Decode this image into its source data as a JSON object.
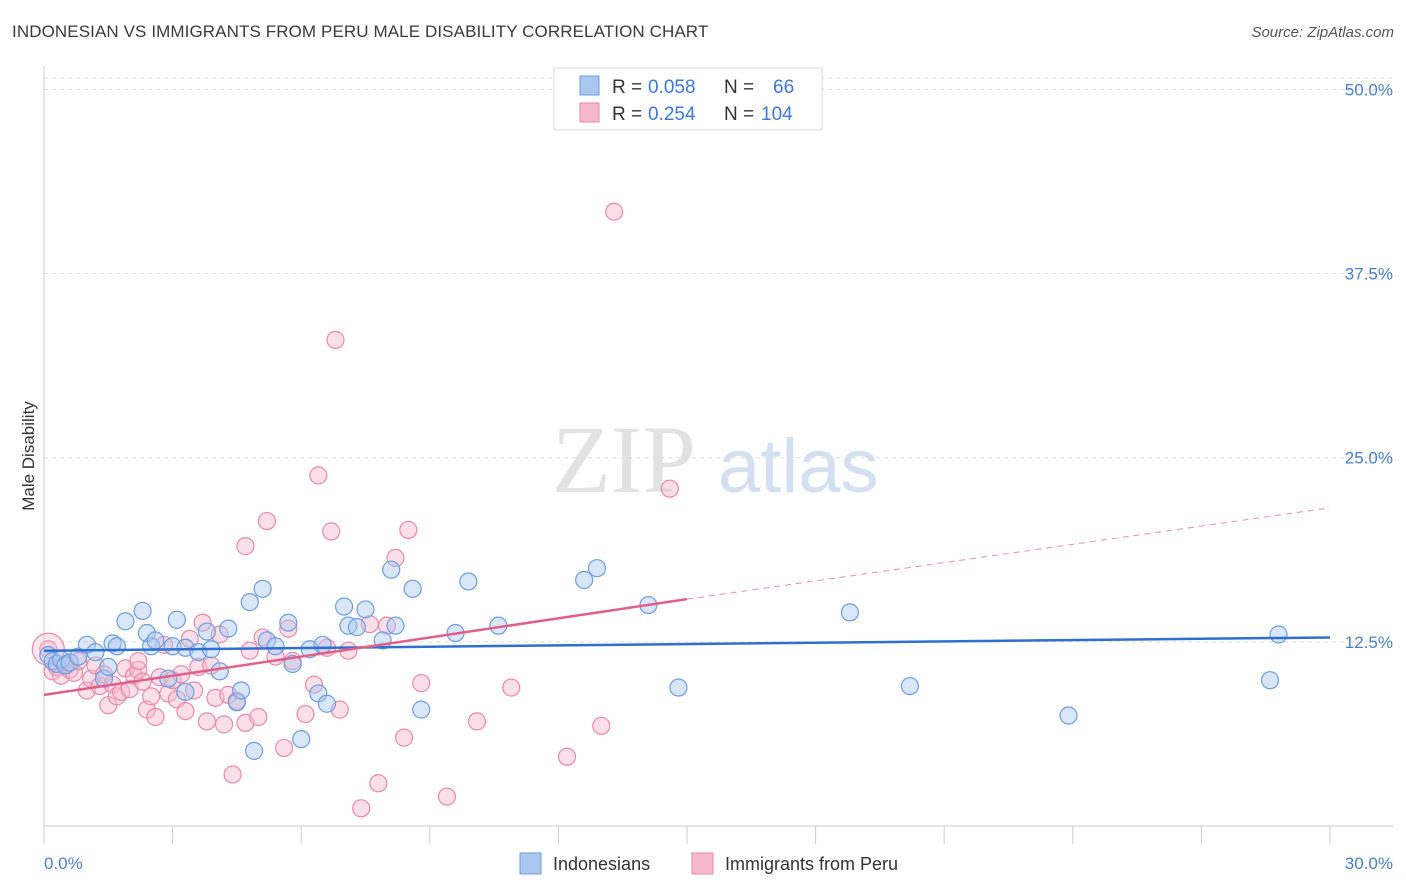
{
  "title": "INDONESIAN VS IMMIGRANTS FROM PERU MALE DISABILITY CORRELATION CHART",
  "source": "Source: ZipAtlas.com",
  "watermark": {
    "zip": "ZIP",
    "atlas": "atlas"
  },
  "colors": {
    "blue_fill": "#a8c8f0",
    "blue_stroke": "#6d9de0",
    "blue_line": "#2f6fd0",
    "pink_fill": "#f6b8cc",
    "pink_stroke": "#e98aa9",
    "pink_line": "#e0608a",
    "axis_label": "#4a7fc9"
  },
  "chart_data": {
    "type": "scatter",
    "title": "INDONESIAN VS IMMIGRANTS FROM PERU MALE DISABILITY CORRELATION CHART",
    "xlabel": "",
    "ylabel": "Male Disability",
    "xlim": [
      0,
      30
    ],
    "ylim": [
      0,
      52
    ],
    "x_tick_labels": [
      "0.0%",
      "30.0%"
    ],
    "y_ticks": [
      12.5,
      25.0,
      37.5,
      50.0
    ],
    "y_tick_labels": [
      "12.5%",
      "25.0%",
      "37.5%",
      "50.0%"
    ],
    "legend": {
      "items": [
        {
          "r_label": "R =",
          "r_value": "0.058",
          "n_label": "N =",
          "n_value": "66"
        },
        {
          "r_label": "R =",
          "r_value": "0.254",
          "n_label": "N =",
          "n_value": "104"
        }
      ]
    },
    "series": [
      {
        "name": "Indonesians",
        "trend": {
          "x": [
            0,
            30
          ],
          "y": [
            11.9,
            12.8
          ]
        },
        "points": [
          [
            0.1,
            11.6
          ],
          [
            0.2,
            11.2
          ],
          [
            0.3,
            11.0
          ],
          [
            0.4,
            11.3
          ],
          [
            0.5,
            10.9
          ],
          [
            0.6,
            11.1
          ],
          [
            0.8,
            11.5
          ],
          [
            1.0,
            12.3
          ],
          [
            1.2,
            11.8
          ],
          [
            1.4,
            10.0
          ],
          [
            1.5,
            10.8
          ],
          [
            1.6,
            12.4
          ],
          [
            1.7,
            12.2
          ],
          [
            1.9,
            13.9
          ],
          [
            2.3,
            14.6
          ],
          [
            2.4,
            13.1
          ],
          [
            2.5,
            12.2
          ],
          [
            2.6,
            12.6
          ],
          [
            2.9,
            10.0
          ],
          [
            3.0,
            12.2
          ],
          [
            3.1,
            14.0
          ],
          [
            3.3,
            12.1
          ],
          [
            3.3,
            9.1
          ],
          [
            3.6,
            11.8
          ],
          [
            3.8,
            13.2
          ],
          [
            3.9,
            12.0
          ],
          [
            4.1,
            10.5
          ],
          [
            4.3,
            13.4
          ],
          [
            4.5,
            8.4
          ],
          [
            4.6,
            9.2
          ],
          [
            4.8,
            15.2
          ],
          [
            4.9,
            5.1
          ],
          [
            5.1,
            16.1
          ],
          [
            5.2,
            12.6
          ],
          [
            5.4,
            12.2
          ],
          [
            5.7,
            13.8
          ],
          [
            5.8,
            11.0
          ],
          [
            6.0,
            5.9
          ],
          [
            6.2,
            12.0
          ],
          [
            6.4,
            9.0
          ],
          [
            6.5,
            12.3
          ],
          [
            6.6,
            8.3
          ],
          [
            7.0,
            14.9
          ],
          [
            7.1,
            13.6
          ],
          [
            7.3,
            13.5
          ],
          [
            7.5,
            14.7
          ],
          [
            7.9,
            12.6
          ],
          [
            8.1,
            17.4
          ],
          [
            8.2,
            13.6
          ],
          [
            8.6,
            16.1
          ],
          [
            8.8,
            7.9
          ],
          [
            9.6,
            13.1
          ],
          [
            9.9,
            16.6
          ],
          [
            10.6,
            13.6
          ],
          [
            12.6,
            16.7
          ],
          [
            12.9,
            17.5
          ],
          [
            14.1,
            15.0
          ],
          [
            14.8,
            9.4
          ],
          [
            18.8,
            14.5
          ],
          [
            20.2,
            9.5
          ],
          [
            23.9,
            7.5
          ],
          [
            28.6,
            9.9
          ],
          [
            28.8,
            13.0
          ]
        ]
      },
      {
        "name": "Immigrants from Peru",
        "trend": {
          "x": [
            0,
            15
          ],
          "y": [
            8.9,
            15.4
          ]
        },
        "trend_extended": {
          "x": [
            15,
            30
          ],
          "y": [
            15.4,
            21.6
          ]
        },
        "points": [
          [
            0.1,
            12.0
          ],
          [
            0.2,
            10.5
          ],
          [
            0.3,
            10.8
          ],
          [
            0.4,
            10.2
          ],
          [
            0.5,
            11.0
          ],
          [
            0.6,
            10.6
          ],
          [
            0.7,
            10.4
          ],
          [
            0.8,
            11.2
          ],
          [
            1.0,
            9.2
          ],
          [
            1.1,
            10.0
          ],
          [
            1.2,
            10.9
          ],
          [
            1.3,
            9.5
          ],
          [
            1.4,
            10.3
          ],
          [
            1.5,
            8.2
          ],
          [
            1.6,
            9.6
          ],
          [
            1.7,
            8.8
          ],
          [
            1.8,
            9.1
          ],
          [
            1.9,
            10.7
          ],
          [
            2.0,
            9.3
          ],
          [
            2.1,
            10.2
          ],
          [
            2.2,
            10.6
          ],
          [
            2.3,
            9.8
          ],
          [
            2.4,
            7.9
          ],
          [
            2.5,
            8.8
          ],
          [
            2.6,
            7.4
          ],
          [
            2.7,
            10.1
          ],
          [
            2.8,
            12.3
          ],
          [
            2.9,
            9.0
          ],
          [
            3.0,
            9.9
          ],
          [
            3.1,
            8.6
          ],
          [
            3.2,
            10.3
          ],
          [
            3.3,
            7.8
          ],
          [
            3.4,
            12.7
          ],
          [
            3.5,
            9.2
          ],
          [
            3.6,
            10.8
          ],
          [
            3.7,
            13.8
          ],
          [
            3.8,
            7.1
          ],
          [
            3.9,
            10.9
          ],
          [
            4.0,
            8.7
          ],
          [
            4.1,
            13.0
          ],
          [
            4.2,
            6.9
          ],
          [
            4.3,
            8.9
          ],
          [
            4.4,
            3.5
          ],
          [
            4.5,
            8.5
          ],
          [
            4.7,
            7.0
          ],
          [
            4.8,
            11.9
          ],
          [
            5.0,
            7.4
          ],
          [
            5.1,
            12.8
          ],
          [
            5.2,
            20.7
          ],
          [
            5.4,
            11.5
          ],
          [
            5.6,
            5.3
          ],
          [
            5.7,
            13.4
          ],
          [
            5.8,
            11.2
          ],
          [
            6.1,
            7.6
          ],
          [
            6.3,
            9.6
          ],
          [
            6.4,
            23.8
          ],
          [
            6.6,
            12.1
          ],
          [
            6.7,
            20.0
          ],
          [
            6.8,
            33.0
          ],
          [
            6.9,
            7.9
          ],
          [
            7.1,
            11.9
          ],
          [
            7.4,
            1.2
          ],
          [
            7.6,
            13.7
          ],
          [
            7.8,
            2.9
          ],
          [
            8.0,
            13.6
          ],
          [
            8.2,
            18.2
          ],
          [
            8.4,
            6.0
          ],
          [
            8.5,
            20.1
          ],
          [
            8.8,
            9.7
          ],
          [
            9.4,
            2.0
          ],
          [
            10.1,
            7.1
          ],
          [
            10.9,
            9.4
          ],
          [
            12.2,
            4.7
          ],
          [
            13.0,
            6.8
          ],
          [
            13.3,
            41.7
          ],
          [
            14.6,
            22.9
          ],
          [
            4.7,
            19.0
          ],
          [
            2.2,
            11.2
          ]
        ]
      }
    ]
  },
  "bottom_legend": [
    {
      "label": "Indonesians"
    },
    {
      "label": "Immigrants from Peru"
    }
  ]
}
